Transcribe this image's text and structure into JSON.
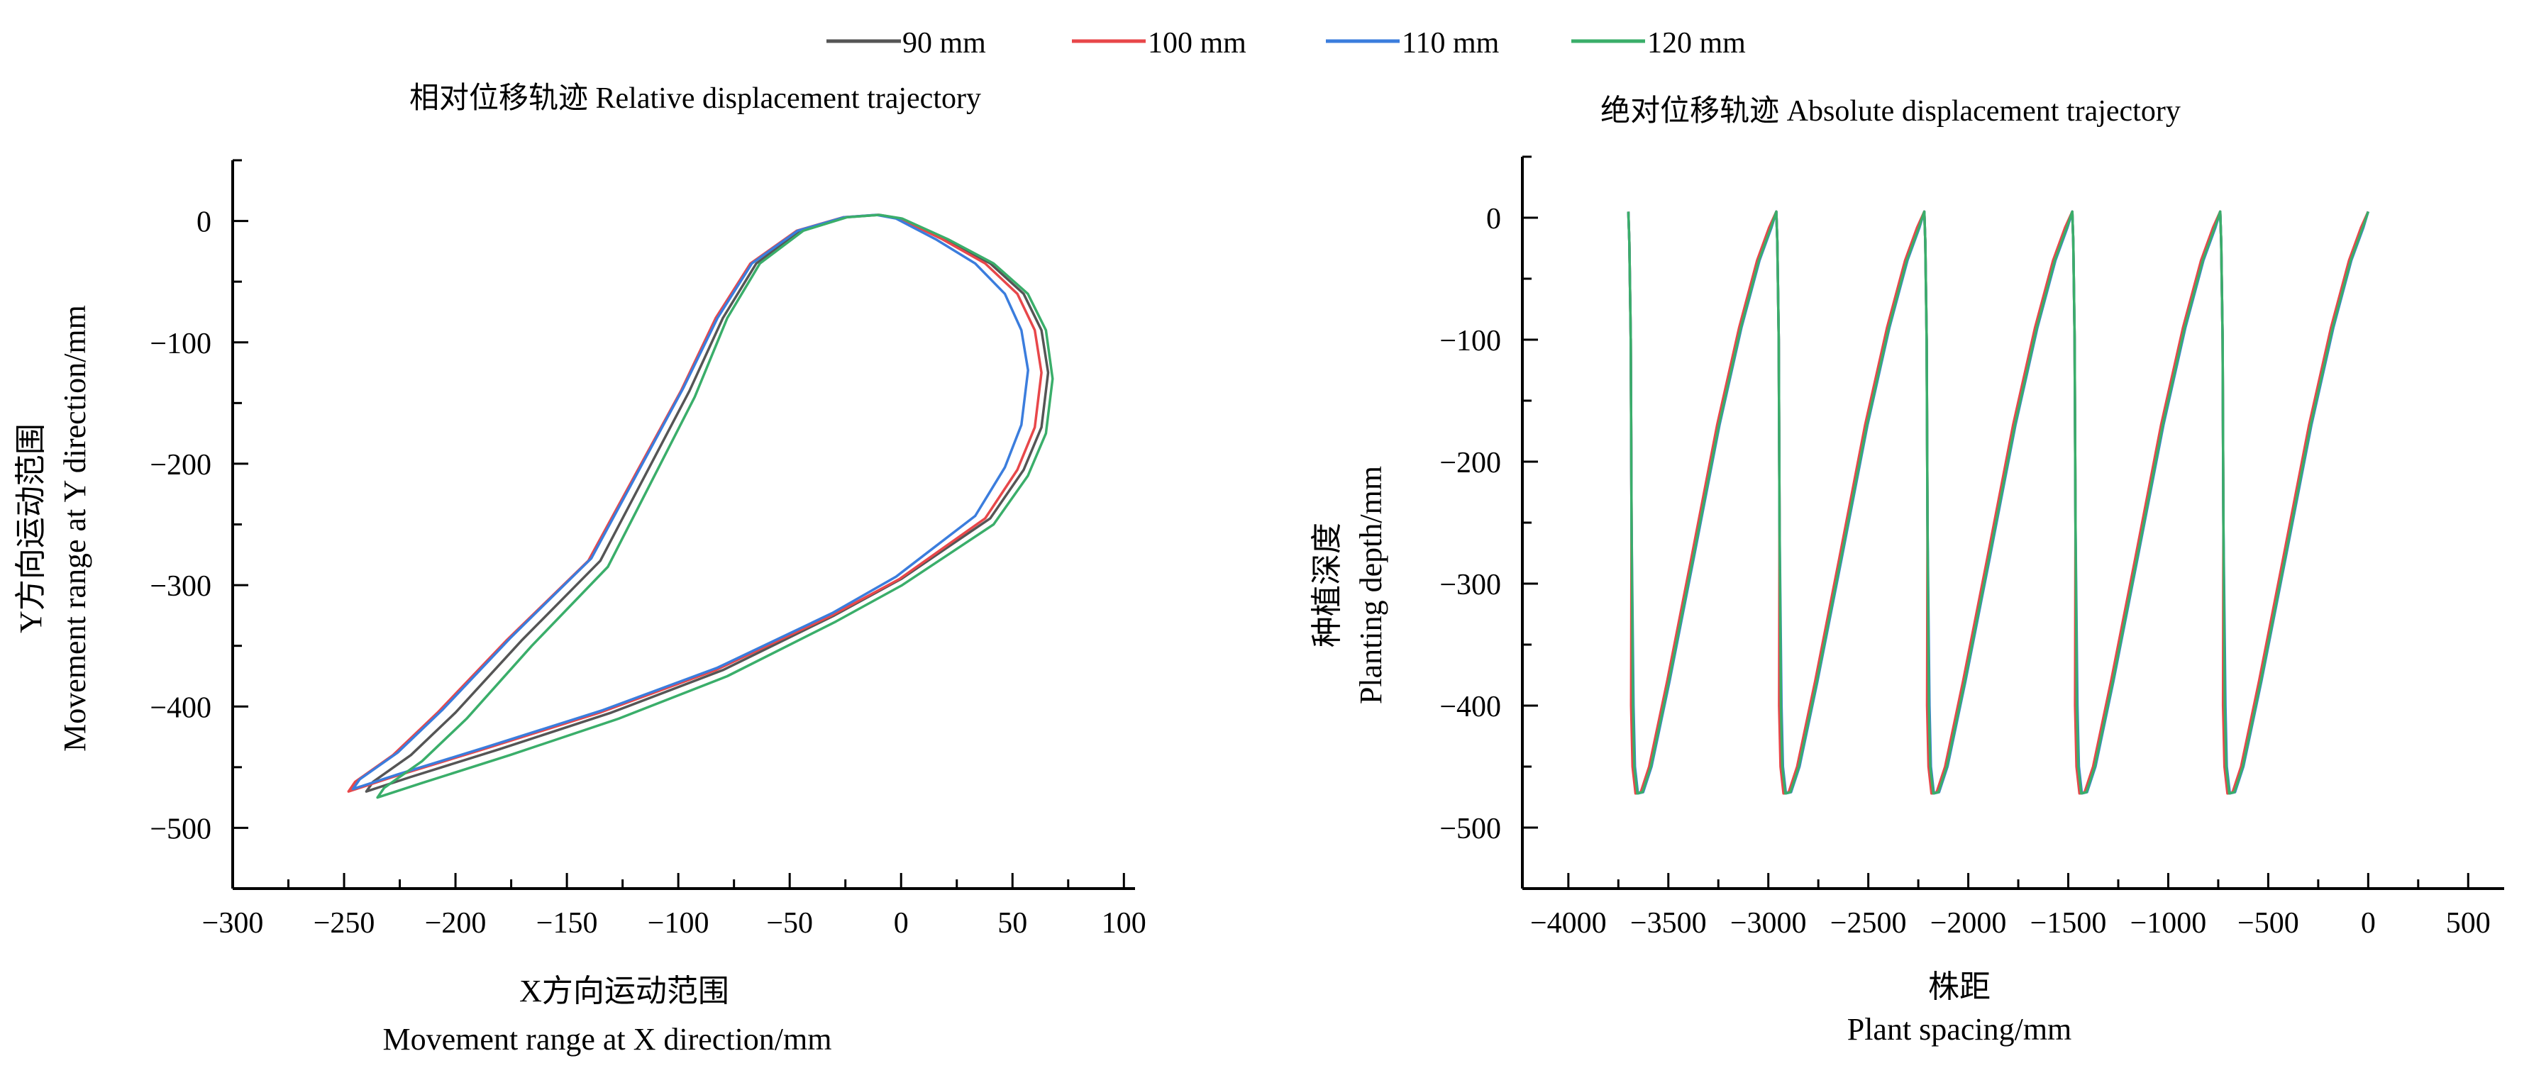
{
  "chart_data": [
    {
      "type": "line",
      "title": "相对位移轨迹 Relative displacement trajectory",
      "xlabel_cn": "X方向运动范围",
      "xlabel_en": "Movement range at X direction/mm",
      "ylabel_cn": "Y方向运动范围",
      "ylabel_en": "Movement range at Y direction/mm",
      "xlim": [
        -300,
        105
      ],
      "ylim": [
        -550,
        50
      ],
      "xticks": [
        -300,
        -250,
        -200,
        -150,
        -100,
        -50,
        0,
        50,
        100
      ],
      "yticks": [
        0,
        -100,
        -200,
        -300,
        -400,
        -500
      ],
      "xtick_labels": [
        "−300",
        "−250",
        "−200",
        "−150",
        "−100",
        "−50",
        "0",
        "50",
        "100"
      ],
      "ytick_labels": [
        "0",
        "−100",
        "−200",
        "−300",
        "−400",
        "−500"
      ],
      "base_curve": [
        [
          -10,
          5
        ],
        [
          0,
          2
        ],
        [
          20,
          -15
        ],
        [
          40,
          -35
        ],
        [
          55,
          -60
        ],
        [
          63,
          -90
        ],
        [
          66,
          -125
        ],
        [
          63,
          -170
        ],
        [
          55,
          -205
        ],
        [
          40,
          -245
        ],
        [
          20,
          -270
        ],
        [
          0,
          -295
        ],
        [
          -30,
          -325
        ],
        [
          -80,
          -370
        ],
        [
          -130,
          -405
        ],
        [
          -180,
          -435
        ],
        [
          -220,
          -458
        ],
        [
          -240,
          -470
        ],
        [
          -237,
          -462
        ],
        [
          -220,
          -440
        ],
        [
          -200,
          -405
        ],
        [
          -170,
          -345
        ],
        [
          -135,
          -280
        ],
        [
          -115,
          -210
        ],
        [
          -95,
          -140
        ],
        [
          -80,
          -80
        ],
        [
          -65,
          -35
        ],
        [
          -45,
          -8
        ],
        [
          -25,
          3
        ],
        [
          -10,
          5
        ]
      ],
      "series": [
        {
          "name": "90 mm",
          "color": "#555555",
          "dx_left": 0,
          "dx_right": 0,
          "dy": 0
        },
        {
          "name": "100 mm",
          "color": "#e8474a",
          "dx_left": -8,
          "dx_right": -3,
          "dy": 0
        },
        {
          "name": "110 mm",
          "color": "#3b7ddd",
          "dx_left": -6,
          "dx_right": -9,
          "dy": 2
        },
        {
          "name": "120 mm",
          "color": "#3aae6a",
          "dx_left": 5,
          "dx_right": 2,
          "dy": -5
        }
      ]
    },
    {
      "type": "line",
      "title": "绝对位移轨迹 Absolute displacement trajectory",
      "xlabel_cn": "株距",
      "xlabel_en": "Plant spacing/mm",
      "ylabel_cn": "种植深度",
      "ylabel_en": "Planting depth/mm",
      "xlim": [
        -4230,
        680
      ],
      "ylim": [
        -550,
        50
      ],
      "xticks": [
        -4000,
        -3500,
        -3000,
        -2500,
        -2000,
        -1500,
        -1000,
        -500,
        0,
        500
      ],
      "yticks": [
        0,
        -100,
        -200,
        -300,
        -400,
        -500
      ],
      "xtick_labels": [
        "−4000",
        "−3500",
        "−3000",
        "−2500",
        "−2000",
        "−1500",
        "−1000",
        "−500",
        "0",
        "500"
      ],
      "ytick_labels": [
        "0",
        "−100",
        "−200",
        "−300",
        "−400",
        "−500"
      ],
      "cycle_peaks": [
        -3700,
        -2960,
        -2220,
        -1480,
        -740
      ],
      "cycle_template": [
        [
          0,
          5
        ],
        [
          5,
          -20
        ],
        [
          12,
          -100
        ],
        [
          16,
          -250
        ],
        [
          20,
          -400
        ],
        [
          27,
          -450
        ],
        [
          42,
          -472
        ],
        [
          68,
          -471
        ],
        [
          110,
          -450
        ],
        [
          200,
          -380
        ],
        [
          320,
          -280
        ],
        [
          450,
          -170
        ],
        [
          560,
          -90
        ],
        [
          650,
          -35
        ],
        [
          710,
          -8
        ],
        [
          740,
          5
        ]
      ],
      "series": [
        {
          "name": "90 mm",
          "color": "#555555",
          "dx": 0
        },
        {
          "name": "100 mm",
          "color": "#e8474a",
          "dx": -6
        },
        {
          "name": "110 mm",
          "color": "#3b7ddd",
          "dx": 6
        },
        {
          "name": "120 mm",
          "color": "#3aae6a",
          "dx": 3
        }
      ]
    }
  ],
  "legend": {
    "placement": "top-center",
    "items": [
      {
        "label": "90 mm",
        "color": "#555555"
      },
      {
        "label": "100 mm",
        "color": "#e8474a"
      },
      {
        "label": "110 mm",
        "color": "#3b7ddd"
      },
      {
        "label": "120 mm",
        "color": "#3aae6a"
      }
    ]
  }
}
